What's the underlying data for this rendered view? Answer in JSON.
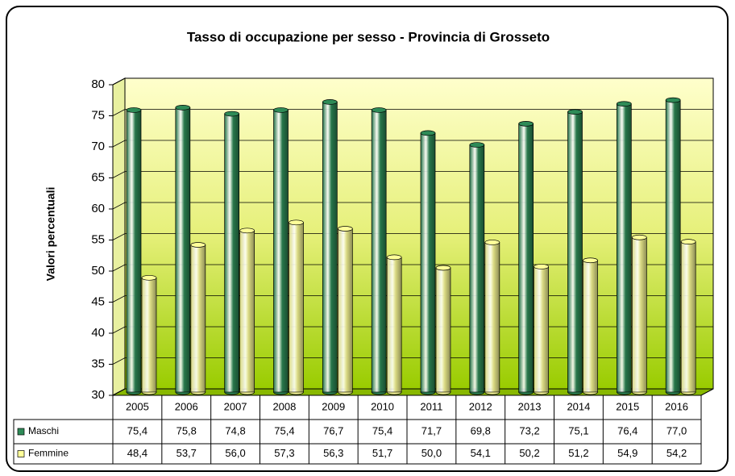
{
  "chart_data": {
    "type": "bar3d",
    "title": "Tasso di occupazione per sesso - Provincia di Grosseto",
    "ylabel": "Valori percentuali",
    "categories": [
      "2005",
      "2006",
      "2007",
      "2008",
      "2009",
      "2010",
      "2011",
      "2012",
      "2013",
      "2014",
      "2015",
      "2016"
    ],
    "series": [
      {
        "name": "Maschi",
        "color": "#2e8b57",
        "values": [
          75.4,
          75.8,
          74.8,
          75.4,
          76.7,
          75.4,
          71.7,
          69.8,
          73.2,
          75.1,
          76.4,
          77.0
        ],
        "value_labels": [
          "75,4",
          "75,8",
          "74,8",
          "75,4",
          "76,7",
          "75,4",
          "71,7",
          "69,8",
          "73,2",
          "75,1",
          "76,4",
          "77,0"
        ]
      },
      {
        "name": "Femmine",
        "color": "#ffff99",
        "values": [
          48.4,
          53.7,
          56.0,
          57.3,
          56.3,
          51.7,
          50.0,
          54.1,
          50.2,
          51.2,
          54.9,
          54.2
        ],
        "value_labels": [
          "48,4",
          "53,7",
          "56,0",
          "57,3",
          "56,3",
          "51,7",
          "50,0",
          "54,1",
          "50,2",
          "51,2",
          "54,9",
          "54,2"
        ]
      }
    ],
    "ylim": [
      30,
      80
    ],
    "yticks": [
      30,
      35,
      40,
      45,
      50,
      55,
      60,
      65,
      70,
      75,
      80
    ],
    "grid": true
  }
}
